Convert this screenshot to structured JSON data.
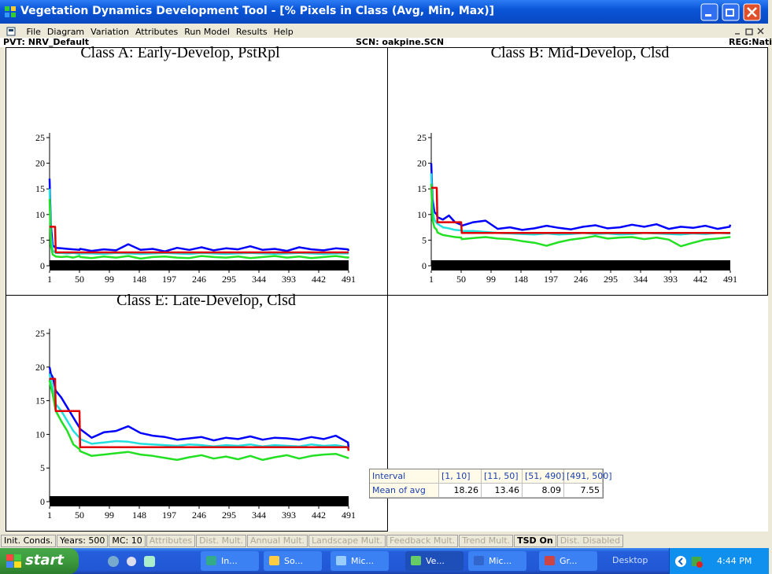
{
  "window": {
    "title": "Vegetation Dynamics Development Tool - [% Pixels in Class (Avg, Min, Max)]"
  },
  "menu": [
    "File",
    "Diagram",
    "Variation",
    "Attributes",
    "Run Model",
    "Results",
    "Help"
  ],
  "info": {
    "pvt": "PVT: NRV_Default",
    "scn": "SCN: oakpine.SCN",
    "reg": "REG:Nati"
  },
  "chart_data": [
    {
      "type": "line",
      "title": "Class A: Early-Develop, PstRpl",
      "xlim": [
        1,
        491
      ],
      "ylim": [
        0,
        25
      ],
      "xticks": [
        1,
        50,
        99,
        148,
        197,
        246,
        295,
        344,
        393,
        442,
        491
      ],
      "yticks": [
        0,
        5,
        10,
        15,
        20,
        25
      ],
      "x": [
        1,
        3,
        6,
        10,
        11,
        20,
        30,
        40,
        50,
        51,
        70,
        90,
        110,
        130,
        150,
        170,
        190,
        210,
        230,
        250,
        270,
        290,
        310,
        330,
        350,
        370,
        390,
        410,
        430,
        450,
        470,
        490,
        491
      ],
      "series": [
        {
          "color": "#0000ff",
          "values": [
            17,
            8,
            4,
            3.6,
            3.5,
            3.4,
            3.3,
            3.2,
            3.1,
            3.3,
            2.9,
            3.2,
            3.0,
            4.2,
            3.1,
            3.3,
            2.8,
            3.5,
            3.1,
            3.6,
            3.0,
            3.4,
            3.2,
            3.8,
            3.1,
            3.3,
            2.9,
            3.6,
            3.2,
            3.0,
            3.4,
            3.2,
            2.9
          ]
        },
        {
          "color": "#22e0e0",
          "values": [
            15,
            6,
            3,
            2.6,
            2.5,
            2.5,
            2.4,
            2.5,
            2.3,
            2.4,
            2.4,
            2.3,
            2.5,
            2.4,
            2.3,
            2.4,
            2.5,
            2.4,
            2.3,
            2.5,
            2.4,
            2.3,
            2.4,
            2.5,
            2.4,
            2.3,
            2.4,
            2.5,
            2.4,
            2.3,
            2.4,
            2.4,
            2.3
          ]
        },
        {
          "color": "#22e022",
          "values": [
            13,
            4,
            2.2,
            1.9,
            1.8,
            1.7,
            1.8,
            1.6,
            1.9,
            1.7,
            1.5,
            1.8,
            1.6,
            1.9,
            1.4,
            1.7,
            1.8,
            1.6,
            1.5,
            1.9,
            1.7,
            1.6,
            1.8,
            1.5,
            1.7,
            1.9,
            1.6,
            1.8,
            1.5,
            1.7,
            1.9,
            1.6,
            1.8
          ]
        },
        {
          "color": "#e00000",
          "values": [
            7.6,
            7.6,
            7.6,
            7.6,
            2.6,
            2.6,
            2.6,
            2.6,
            2.6,
            2.6,
            2.6,
            2.6,
            2.6,
            2.6,
            2.6,
            2.6,
            2.6,
            2.6,
            2.6,
            2.6,
            2.6,
            2.6,
            2.6,
            2.6,
            2.6,
            2.6,
            2.6,
            2.6,
            2.6,
            2.6,
            2.6,
            2.6,
            2.6
          ]
        }
      ]
    },
    {
      "type": "line",
      "title": "Class B: Mid-Develop, Clsd",
      "xlim": [
        1,
        491
      ],
      "ylim": [
        0,
        25
      ],
      "xticks": [
        1,
        50,
        99,
        148,
        197,
        246,
        295,
        344,
        393,
        442,
        491
      ],
      "yticks": [
        0,
        5,
        10,
        15,
        20,
        25
      ],
      "x": [
        1,
        3,
        6,
        10,
        11,
        20,
        30,
        40,
        50,
        51,
        70,
        90,
        110,
        130,
        150,
        170,
        190,
        210,
        230,
        250,
        270,
        290,
        310,
        330,
        350,
        370,
        390,
        410,
        430,
        450,
        470,
        490,
        491
      ],
      "series": [
        {
          "color": "#0000ff",
          "values": [
            20,
            13,
            10.5,
            10,
            9.5,
            9,
            9.8,
            8.5,
            8,
            7.8,
            8.5,
            8.8,
            7.2,
            7.5,
            7,
            7.3,
            7.8,
            7.4,
            7.1,
            7.6,
            7.9,
            7.3,
            7.5,
            8,
            7.6,
            8.1,
            7.2,
            7.6,
            7.4,
            7.8,
            7.2,
            7.6,
            8
          ]
        },
        {
          "color": "#22e0e0",
          "values": [
            18,
            11,
            9,
            8.3,
            8.2,
            7.5,
            7.3,
            7,
            6.9,
            6.8,
            6.8,
            6.6,
            6.4,
            6.3,
            6.2,
            6.1,
            6.3,
            6.1,
            6.2,
            6.4,
            6.2,
            6.3,
            6.1,
            6.2,
            6.4,
            6.3,
            6.2,
            6.1,
            6.3,
            6.2,
            6.4,
            6.3,
            6.2
          ]
        },
        {
          "color": "#22e022",
          "values": [
            16,
            9,
            7.5,
            7,
            6.5,
            6,
            5.8,
            5.6,
            5.5,
            5.2,
            5.4,
            5.6,
            5.3,
            5.2,
            4.8,
            4.5,
            3.9,
            4.6,
            5.1,
            5.4,
            5.8,
            5.3,
            5.5,
            5.6,
            5.2,
            5.5,
            5.1,
            3.8,
            4.5,
            5.1,
            5.3,
            5.6,
            5.7
          ]
        },
        {
          "color": "#e00000",
          "values": [
            15.2,
            15.2,
            15.2,
            15.2,
            8.5,
            8.5,
            8.5,
            8.5,
            8.5,
            6.4,
            6.4,
            6.4,
            6.4,
            6.4,
            6.4,
            6.4,
            6.4,
            6.4,
            6.4,
            6.4,
            6.4,
            6.4,
            6.4,
            6.4,
            6.4,
            6.4,
            6.4,
            6.4,
            6.4,
            6.4,
            6.4,
            6.4,
            6.4
          ]
        }
      ]
    },
    {
      "type": "line",
      "title": "Class E: Late-Develop, Clsd",
      "xlim": [
        1,
        491
      ],
      "ylim": [
        0,
        25
      ],
      "xticks": [
        1,
        50,
        99,
        148,
        197,
        246,
        295,
        344,
        393,
        442,
        491
      ],
      "yticks": [
        0,
        5,
        10,
        15,
        20,
        25
      ],
      "x": [
        1,
        3,
        6,
        10,
        11,
        20,
        30,
        40,
        50,
        51,
        70,
        90,
        110,
        130,
        150,
        170,
        190,
        210,
        230,
        250,
        270,
        290,
        310,
        330,
        350,
        370,
        390,
        410,
        430,
        450,
        470,
        490,
        491
      ],
      "series": [
        {
          "color": "#0000ff",
          "values": [
            20,
            19,
            18.5,
            17,
            16.5,
            15.5,
            14,
            12.5,
            11,
            10.8,
            9.5,
            10.3,
            10.5,
            11.2,
            10.2,
            9.8,
            9.6,
            9.2,
            9.4,
            9.6,
            9.1,
            9.5,
            9.3,
            9.7,
            9.2,
            9.5,
            9.4,
            9.2,
            9.6,
            9.3,
            9.8,
            8.8,
            8
          ]
        },
        {
          "color": "#22e0e0",
          "values": [
            19,
            18,
            17,
            15,
            14.5,
            13.5,
            12,
            10.5,
            9.5,
            9.3,
            8.6,
            8.8,
            9,
            8.9,
            8.6,
            8.5,
            8.4,
            8.3,
            8.5,
            8.4,
            8.2,
            8.4,
            8.3,
            8.5,
            8.2,
            8.4,
            8.3,
            8.2,
            8.5,
            8.3,
            8.4,
            8.1,
            7.8
          ]
        },
        {
          "color": "#22e022",
          "values": [
            18,
            17,
            16,
            14,
            13.5,
            12,
            10.5,
            8.5,
            7.8,
            7.5,
            6.8,
            7,
            7.2,
            7.4,
            7,
            6.8,
            6.5,
            6.2,
            6.6,
            6.9,
            6.4,
            6.7,
            6.3,
            6.8,
            6.2,
            6.6,
            6.9,
            6.4,
            6.8,
            7,
            7.1,
            6.5,
            6.4
          ]
        },
        {
          "color": "#e00000",
          "values": [
            18.26,
            18.26,
            18.26,
            18.26,
            13.46,
            13.46,
            13.46,
            13.46,
            13.46,
            8.09,
            8.09,
            8.09,
            8.09,
            8.09,
            8.09,
            8.09,
            8.09,
            8.09,
            8.09,
            8.09,
            8.09,
            8.09,
            8.09,
            8.09,
            8.09,
            8.09,
            8.09,
            8.09,
            8.09,
            8.09,
            8.09,
            8.09,
            7.55
          ]
        }
      ]
    }
  ],
  "table": {
    "header": [
      "Interval",
      "[1, 10]",
      "[11, 50]",
      "[51, 490]",
      "[491, 500]"
    ],
    "rows": [
      [
        "Mean of avg",
        "18.26",
        "13.46",
        "8.09",
        "7.55"
      ]
    ]
  },
  "status_tabs": [
    {
      "label": "Init. Conds.",
      "enabled": true
    },
    {
      "label": "Years: 500",
      "enabled": true
    },
    {
      "label": "MC: 10",
      "enabled": true
    },
    {
      "label": "Attributes",
      "enabled": false
    },
    {
      "label": "Dist. Mult.",
      "enabled": false
    },
    {
      "label": "Annual Mult.",
      "enabled": false
    },
    {
      "label": "Landscape Mult.",
      "enabled": false
    },
    {
      "label": "Feedback Mult.",
      "enabled": false
    },
    {
      "label": "Trend Mult.",
      "enabled": false
    },
    {
      "label": "TSD On",
      "enabled": true
    },
    {
      "label": "Dist. Disabled",
      "enabled": false
    }
  ],
  "taskbar": {
    "start": "start",
    "buttons": [
      "In...",
      "So...",
      "Mic...",
      "Ve...",
      "Mic...",
      "Gr..."
    ],
    "desktop": "Desktop",
    "clock": "4:44 PM"
  }
}
